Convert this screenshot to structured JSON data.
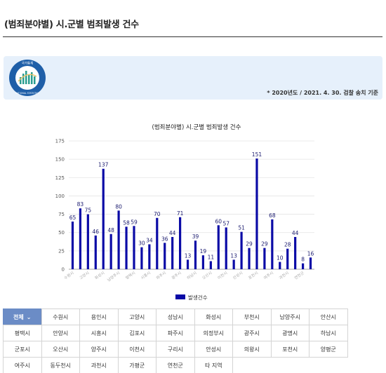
{
  "page": {
    "title": "(범죄분야별) 시.군별 범죄발생 건수",
    "note": "* 2020년도 / 2021. 4. 30. 검찰 송치 기준",
    "logo_text": "국가통계",
    "logo_subtext": "NATIONAL STATISTICS"
  },
  "filters": [
    "전체",
    "수원시",
    "용인시",
    "고양시",
    "성남시",
    "화성시",
    "부천시",
    "남양주시",
    "안산시",
    "평택시",
    "안양시",
    "시흥시",
    "김포시",
    "파주시",
    "의정부시",
    "광주시",
    "광명시",
    "하남시",
    "군포시",
    "오산시",
    "양주시",
    "이천시",
    "구리시",
    "안성시",
    "의왕시",
    "포천시",
    "양평군",
    "여주시",
    "동두천시",
    "과천시",
    "가평군",
    "연천군",
    "타 지역"
  ],
  "filter_active_index": 0,
  "chart_data": {
    "type": "bar",
    "title": "(범죄분야별) 시.군별 범죄발생 건수",
    "series": [
      {
        "name": "발생건수",
        "color": "#0a0aa6",
        "values": [
          65,
          83,
          75,
          46,
          137,
          48,
          80,
          58,
          59,
          30,
          34,
          70,
          36,
          44,
          71,
          13,
          39,
          19,
          11,
          60,
          57,
          13,
          51,
          29,
          151,
          29,
          68,
          10,
          28,
          44,
          8,
          16
        ]
      }
    ],
    "categories": [
      "수원시",
      "",
      "고양시",
      "",
      "화성시",
      "",
      "남양주시",
      "",
      "평택시",
      "",
      "시흥시",
      "",
      "파주시",
      "",
      "광주시",
      "",
      "하남시",
      "",
      "오산시",
      "",
      "이천시",
      "",
      "안성시",
      "",
      "포천시",
      "",
      "여주시",
      "",
      "과천시",
      "",
      "연천군",
      ""
    ],
    "ylim": [
      0,
      175
    ],
    "yticks": [
      0,
      25,
      50,
      75,
      100,
      125,
      150,
      175
    ],
    "grid": true,
    "legend": "bottom"
  }
}
